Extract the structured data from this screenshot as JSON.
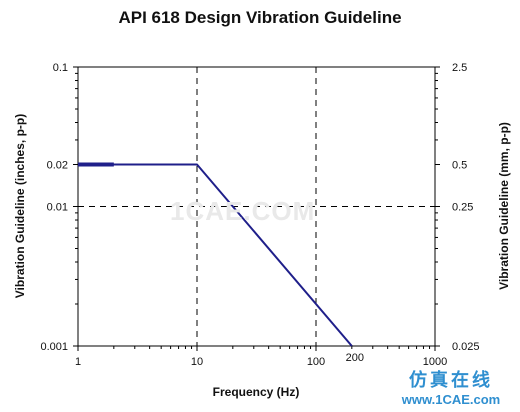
{
  "chart_data": {
    "type": "line",
    "title": "API 618 Design Vibration Guideline",
    "xlabel": "Frequency (Hz)",
    "ylabel": "Vibration Guideline (inches, p-p)",
    "y2label": "Vibration Guideline (mm, p-p)",
    "x_scale": "log",
    "y_scale": "log",
    "xlim": [
      1,
      1000
    ],
    "ylim": [
      0.001,
      0.1
    ],
    "x_ticks": [
      {
        "value": 1,
        "label": "1"
      },
      {
        "value": 10,
        "label": "10"
      },
      {
        "value": 100,
        "label": "100"
      },
      {
        "value": 1000,
        "label": "1000"
      }
    ],
    "x_extra_labels": [
      {
        "value": 200,
        "label": "200"
      }
    ],
    "y_ticks": [
      {
        "value": 0.1,
        "label": "0.1"
      },
      {
        "value": 0.02,
        "label": "0.02"
      },
      {
        "value": 0.01,
        "label": "0.01"
      },
      {
        "value": 0.001,
        "label": "0.001"
      }
    ],
    "y2_ticks": [
      {
        "value": 0.1,
        "label": "2.5"
      },
      {
        "value": 0.02,
        "label": "0.5"
      },
      {
        "value": 0.01,
        "label": "0.25"
      },
      {
        "value": 0.001,
        "label": "0.025"
      }
    ],
    "grid_lines": {
      "x": [
        10,
        100
      ],
      "y": [
        0.01
      ],
      "style": "dashed"
    },
    "series": [
      {
        "color": "#1f1f8a",
        "x": [
          1,
          10,
          200
        ],
        "y": [
          0.02,
          0.02,
          0.001
        ]
      }
    ]
  },
  "watermark": {
    "faint_text": "1CAE.COM",
    "brand_cn": "仿真在线",
    "brand_url": "www.1CAE.com"
  }
}
